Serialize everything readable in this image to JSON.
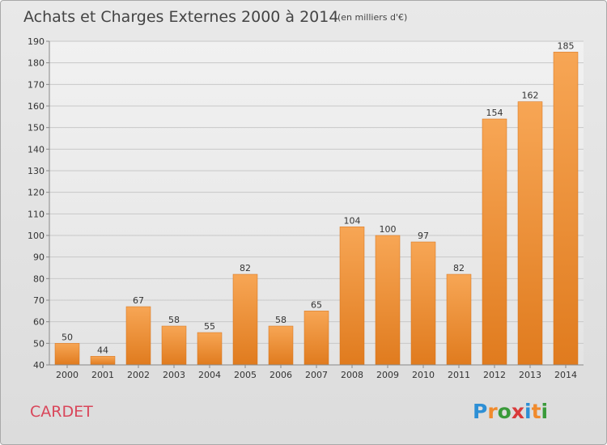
{
  "chart_data": {
    "type": "bar",
    "title": "Achats et Charges Externes 2000 à 2014",
    "subtitle": "(en milliers d'€)",
    "categories": [
      "2000",
      "2001",
      "2002",
      "2003",
      "2004",
      "2005",
      "2006",
      "2007",
      "2008",
      "2009",
      "2010",
      "2011",
      "2012",
      "2013",
      "2014"
    ],
    "values": [
      50,
      44,
      67,
      58,
      55,
      82,
      58,
      65,
      104,
      100,
      97,
      82,
      154,
      162,
      185
    ],
    "ylim": [
      40,
      190
    ],
    "yticks": [
      40,
      50,
      60,
      70,
      80,
      90,
      100,
      110,
      120,
      130,
      140,
      150,
      160,
      170,
      180,
      190
    ],
    "grid": true,
    "bar_color": "#f08a2c",
    "commune": "CARDET"
  },
  "logo": {
    "letters": [
      "P",
      "r",
      "o",
      "x",
      "i",
      "t",
      "i"
    ],
    "colors": [
      "#2d8fd5",
      "#f08a2c",
      "#3a9a3a",
      "#d93a3a",
      "#2d8fd5",
      "#f08a2c",
      "#3a9a3a"
    ]
  }
}
